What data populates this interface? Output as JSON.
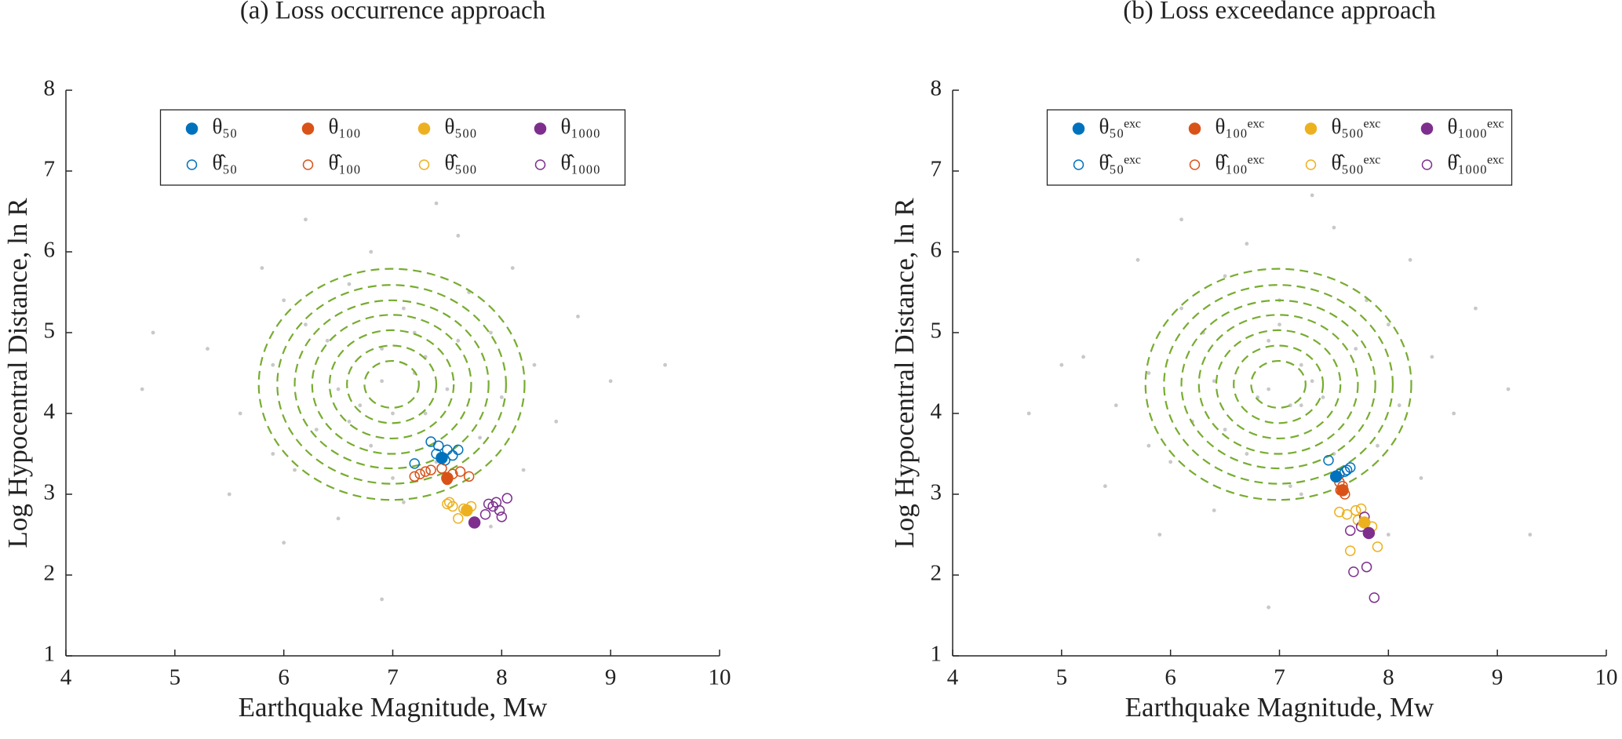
{
  "chart_data": [
    {
      "type": "scatter",
      "title": "(a) Loss occurrence approach",
      "xlabel": "Earthquake Magnitude, Mw",
      "ylabel": "Log Hypocentral Distance, ln R",
      "xlim": [
        4,
        10
      ],
      "ylim": [
        1,
        8
      ],
      "xticks": [
        4,
        5,
        6,
        7,
        8,
        9,
        10
      ],
      "yticks": [
        1,
        2,
        3,
        4,
        5,
        6,
        7,
        8
      ],
      "legend": "north",
      "background_points": {
        "color": "#c8c8c8",
        "x": [
          6.2,
          7.3,
          6.8,
          7.6,
          6.5,
          7.1,
          5.9,
          8.0,
          6.9,
          7.4,
          6.3,
          7.8,
          6.6,
          7.2,
          5.6,
          8.3,
          6.0,
          7.0,
          6.7,
          7.5,
          6.4,
          7.9,
          5.3,
          8.5,
          6.8,
          7.1,
          6.1,
          7.7,
          6.9,
          7.3,
          5.8,
          8.2,
          6.5,
          7.6,
          4.8,
          9.0,
          6.2,
          7.9,
          5.5,
          8.7,
          6.0,
          7.4,
          9.5,
          4.7,
          6.9,
          5.9,
          8.1,
          7.0,
          6.6,
          7.2
        ],
        "y": [
          5.1,
          4.0,
          3.6,
          4.9,
          4.3,
          5.3,
          4.6,
          4.2,
          4.8,
          3.4,
          3.8,
          3.7,
          5.6,
          4.5,
          4.0,
          4.6,
          5.4,
          3.2,
          4.1,
          4.3,
          4.9,
          5.0,
          4.8,
          3.9,
          6.0,
          2.9,
          3.3,
          5.5,
          4.4,
          4.7,
          5.8,
          3.3,
          2.7,
          6.2,
          5.0,
          4.4,
          6.4,
          2.6,
          3.0,
          5.2,
          2.4,
          6.6,
          4.6,
          4.3,
          1.7,
          3.5,
          5.8,
          4.0,
          3.9,
          5.0
        ]
      },
      "contours": {
        "color": "#77ac30",
        "center": [
          6.99,
          4.36
        ],
        "rx": [
          1.22,
          1.05,
          0.89,
          0.73,
          0.57,
          0.41,
          0.25
        ],
        "ry": [
          1.43,
          1.23,
          1.04,
          0.86,
          0.67,
          0.48,
          0.29
        ]
      },
      "series": [
        {
          "name": "θ₅₀",
          "color": "#0072bd",
          "filled": true,
          "x": [
            7.45
          ],
          "y": [
            3.45
          ]
        },
        {
          "name": "θ₁₀₀",
          "color": "#d95319",
          "filled": true,
          "x": [
            7.5
          ],
          "y": [
            3.2
          ]
        },
        {
          "name": "θ₅₀₀",
          "color": "#edb120",
          "filled": true,
          "x": [
            7.68
          ],
          "y": [
            2.8
          ]
        },
        {
          "name": "θ₁₀₀₀",
          "color": "#7e2f8e",
          "filled": true,
          "x": [
            7.75
          ],
          "y": [
            2.65
          ]
        },
        {
          "name": "θ̂₅₀",
          "color": "#0072bd",
          "filled": false,
          "x": [
            7.2,
            7.35,
            7.42,
            7.5,
            7.6,
            7.4,
            7.48,
            7.55
          ],
          "y": [
            3.38,
            3.65,
            3.6,
            3.55,
            3.55,
            3.5,
            3.42,
            3.48
          ]
        },
        {
          "name": "θ̂₁₀₀",
          "color": "#d95319",
          "filled": false,
          "x": [
            7.2,
            7.25,
            7.35,
            7.45,
            7.55,
            7.62,
            7.7,
            7.5,
            7.3
          ],
          "y": [
            3.22,
            3.25,
            3.3,
            3.32,
            3.25,
            3.28,
            3.22,
            3.18,
            3.28
          ]
        },
        {
          "name": "θ̂₅₀₀",
          "color": "#edb120",
          "filled": false,
          "x": [
            7.5,
            7.55,
            7.6,
            7.65,
            7.52,
            7.72
          ],
          "y": [
            2.88,
            2.85,
            2.7,
            2.82,
            2.9,
            2.85
          ]
        },
        {
          "name": "θ̂₁₀₀₀",
          "color": "#7e2f8e",
          "filled": false,
          "x": [
            7.88,
            7.95,
            7.98,
            8.0,
            8.05,
            7.92,
            7.85
          ],
          "y": [
            2.88,
            2.9,
            2.8,
            2.72,
            2.95,
            2.85,
            2.75
          ]
        }
      ]
    },
    {
      "type": "scatter",
      "title": "(b) Loss exceedance approach",
      "xlabel": "Earthquake Magnitude, Mw",
      "ylabel": "Log Hypocentral Distance, ln R",
      "xlim": [
        4,
        10
      ],
      "ylim": [
        1,
        8
      ],
      "xticks": [
        4,
        5,
        6,
        7,
        8,
        9,
        10
      ],
      "yticks": [
        1,
        2,
        3,
        4,
        5,
        6,
        7,
        8
      ],
      "legend": "north",
      "background_points": {
        "color": "#c8c8c8",
        "x": [
          6.3,
          7.2,
          6.7,
          7.7,
          6.4,
          7.0,
          5.8,
          8.1,
          6.9,
          7.5,
          6.2,
          7.9,
          6.5,
          7.3,
          5.5,
          8.4,
          6.1,
          7.1,
          6.8,
          7.4,
          6.3,
          8.0,
          5.2,
          8.6,
          6.7,
          7.2,
          6.0,
          7.8,
          6.9,
          7.2,
          5.7,
          8.3,
          6.4,
          7.5,
          4.7,
          9.1,
          6.1,
          8.0,
          5.4,
          8.8,
          5.9,
          7.3,
          9.3,
          5.0,
          6.9,
          5.8,
          8.2,
          7.1,
          6.5,
          7.0
        ],
        "y": [
          5.0,
          4.1,
          3.5,
          4.8,
          4.4,
          5.4,
          4.5,
          4.1,
          4.9,
          3.5,
          3.9,
          3.6,
          5.7,
          4.4,
          4.1,
          4.7,
          5.3,
          3.1,
          4.2,
          4.2,
          5.0,
          5.1,
          4.7,
          4.0,
          6.1,
          3.0,
          3.4,
          5.4,
          4.3,
          4.6,
          5.9,
          3.2,
          2.8,
          6.3,
          4.0,
          4.3,
          6.4,
          2.5,
          3.1,
          5.3,
          2.5,
          6.7,
          2.5,
          4.6,
          1.6,
          3.6,
          5.9,
          4.1,
          3.8,
          5.1
        ]
      },
      "contours": {
        "color": "#77ac30",
        "center": [
          6.99,
          4.36
        ],
        "rx": [
          1.22,
          1.05,
          0.89,
          0.73,
          0.57,
          0.41,
          0.25
        ],
        "ry": [
          1.43,
          1.23,
          1.04,
          0.86,
          0.67,
          0.48,
          0.29
        ]
      },
      "series": [
        {
          "name": "θ₅₀ᵉˣᶜ",
          "color": "#0072bd",
          "filled": true,
          "x": [
            7.52
          ],
          "y": [
            3.22
          ]
        },
        {
          "name": "θ₁₀₀ᵉˣᶜ",
          "color": "#d95319",
          "filled": true,
          "x": [
            7.58
          ],
          "y": [
            3.05
          ]
        },
        {
          "name": "θ₅₀₀ᵉˣᶜ",
          "color": "#edb120",
          "filled": true,
          "x": [
            7.78
          ],
          "y": [
            2.65
          ]
        },
        {
          "name": "θ₁₀₀₀ᵉˣᶜ",
          "color": "#7e2f8e",
          "filled": true,
          "x": [
            7.82
          ],
          "y": [
            2.52
          ]
        },
        {
          "name": "θ̂₅₀ᵉˣᶜ",
          "color": "#0072bd",
          "filled": false,
          "x": [
            7.45,
            7.6,
            7.65,
            7.55,
            7.62
          ],
          "y": [
            3.42,
            3.28,
            3.33,
            3.25,
            3.3
          ]
        },
        {
          "name": "θ̂₁₀₀ᵉˣᶜ",
          "color": "#d95319",
          "filled": false,
          "x": [
            7.55,
            7.58,
            7.6,
            7.56
          ],
          "y": [
            3.15,
            3.1,
            3.0,
            3.05
          ]
        },
        {
          "name": "θ̂₅₀₀ᵉˣᶜ",
          "color": "#edb120",
          "filled": false,
          "x": [
            7.55,
            7.62,
            7.7,
            7.75,
            7.65,
            7.9,
            7.85,
            7.72
          ],
          "y": [
            2.78,
            2.75,
            2.8,
            2.82,
            2.3,
            2.35,
            2.6,
            2.68
          ]
        },
        {
          "name": "θ̂₁₀₀₀ᵉˣᶜ",
          "color": "#7e2f8e",
          "filled": false,
          "x": [
            7.65,
            7.78,
            7.8,
            7.68,
            7.87,
            7.75
          ],
          "y": [
            2.55,
            2.72,
            2.1,
            2.04,
            1.72,
            2.6
          ]
        }
      ]
    }
  ]
}
